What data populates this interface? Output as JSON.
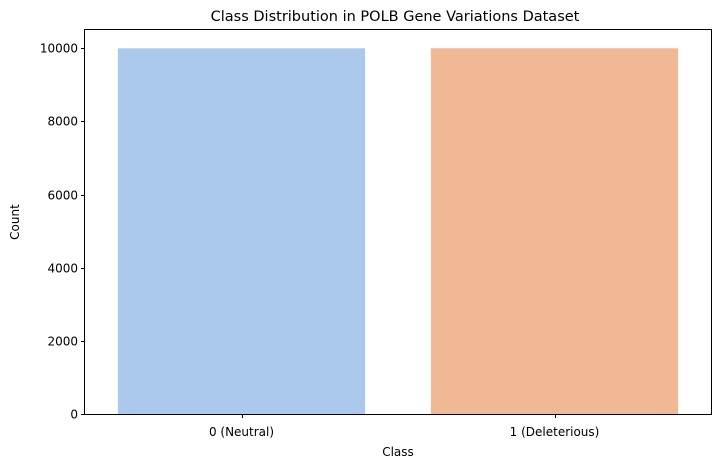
{
  "chart_data": {
    "type": "bar",
    "title": "Class Distribution in POLB Gene Variations Dataset",
    "xlabel": "Class",
    "ylabel": "Count",
    "categories": [
      "0 (Neutral)",
      "1 (Deleterious)"
    ],
    "values": [
      10000,
      10000
    ],
    "colors": [
      "#abc9ed",
      "#f0b894"
    ],
    "ylim": [
      0,
      10500
    ],
    "yticks": [
      0,
      2000,
      4000,
      6000,
      8000,
      10000
    ],
    "grid": false,
    "legend": "none"
  }
}
